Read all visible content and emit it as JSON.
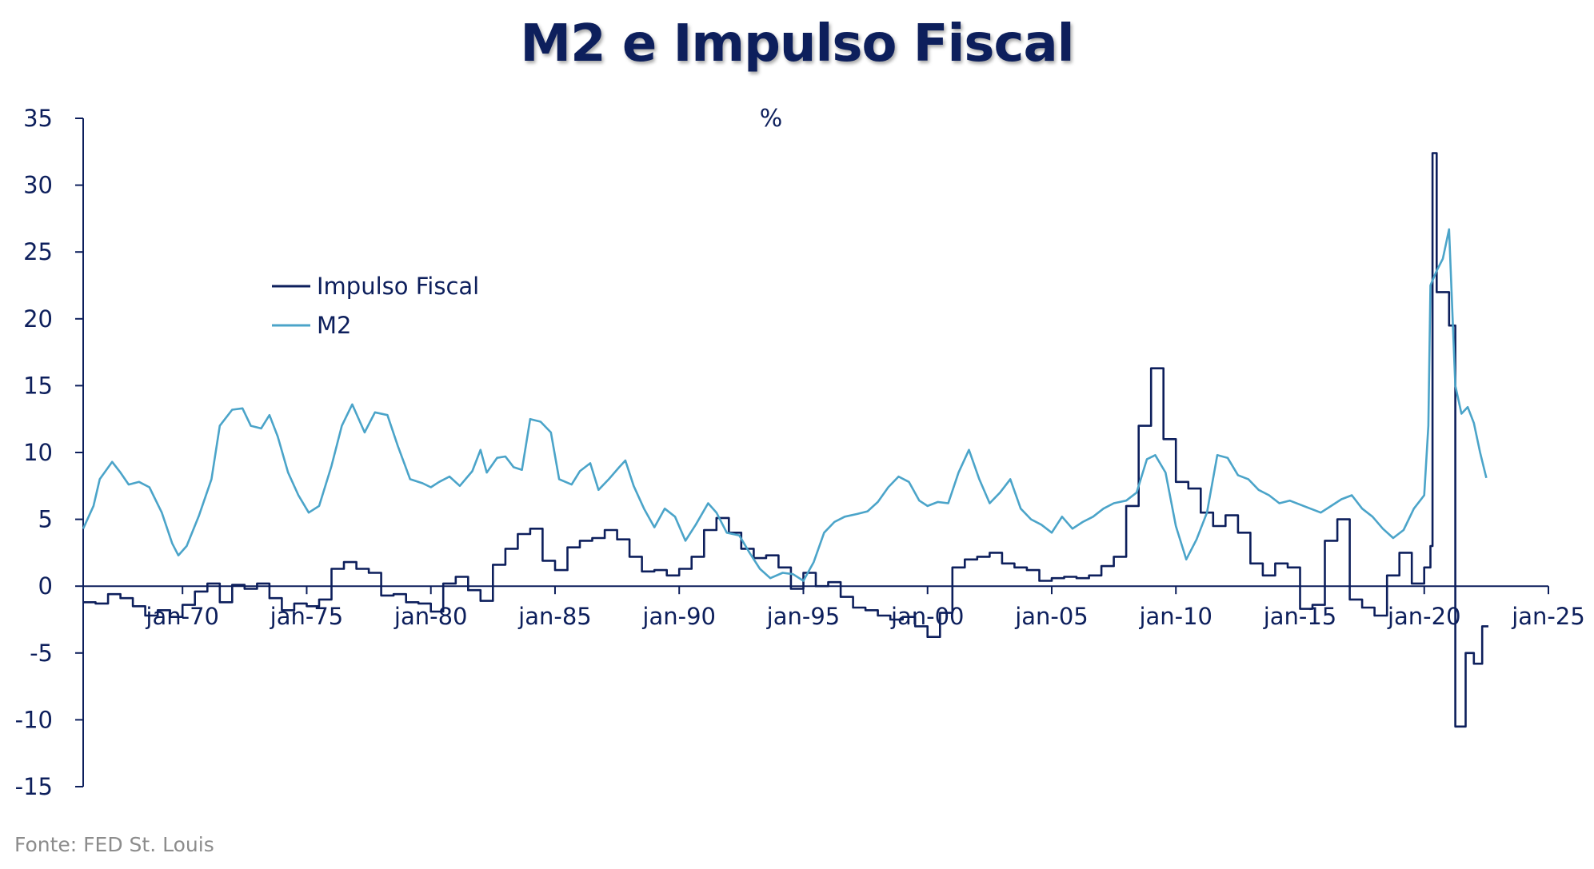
{
  "chart_data": {
    "type": "line",
    "title": "M2 e Impulso Fiscal",
    "subtitle": "%",
    "source": "Fonte:  FED St. Louis",
    "xlabel": "",
    "ylabel": "",
    "ylim": [
      -15,
      35
    ],
    "yticks": [
      35,
      30,
      25,
      20,
      15,
      10,
      5,
      0,
      -5,
      -10,
      -15
    ],
    "xlim": [
      "1966-01",
      "2025-01"
    ],
    "xticks": [
      {
        "date": "1970-01",
        "label": "jan-70"
      },
      {
        "date": "1975-01",
        "label": "jan-75"
      },
      {
        "date": "1980-01",
        "label": "jan-80"
      },
      {
        "date": "1985-01",
        "label": "jan-85"
      },
      {
        "date": "1990-01",
        "label": "jan-90"
      },
      {
        "date": "1995-01",
        "label": "jan-95"
      },
      {
        "date": "2000-01",
        "label": "jan-00"
      },
      {
        "date": "2005-01",
        "label": "jan-05"
      },
      {
        "date": "2010-01",
        "label": "jan-10"
      },
      {
        "date": "2015-01",
        "label": "jan-15"
      },
      {
        "date": "2020-01",
        "label": "jan-20"
      },
      {
        "date": "2025-01",
        "label": "jan-25"
      }
    ],
    "grid": false,
    "legend_position": "upper-left",
    "colors": {
      "title": "#0d1f5c",
      "axis": "#0d1f5c",
      "tick_label": "#0d1f5c",
      "source": "#8c8c8c"
    },
    "series": [
      {
        "name": "Impulso Fiscal",
        "color": "#0d1f5c",
        "stroke_width": 2.6,
        "step": true,
        "points": [
          [
            "1966-01",
            -1.2
          ],
          [
            "1966-07",
            -1.3
          ],
          [
            "1967-01",
            -0.6
          ],
          [
            "1967-07",
            -0.9
          ],
          [
            "1968-01",
            -1.5
          ],
          [
            "1968-07",
            -2.2
          ],
          [
            "1969-01",
            -1.8
          ],
          [
            "1969-07",
            -2.3
          ],
          [
            "1970-01",
            -1.4
          ],
          [
            "1970-07",
            -0.4
          ],
          [
            "1971-01",
            0.2
          ],
          [
            "1971-07",
            -1.2
          ],
          [
            "1972-01",
            0.1
          ],
          [
            "1972-07",
            -0.2
          ],
          [
            "1973-01",
            0.2
          ],
          [
            "1973-07",
            -0.9
          ],
          [
            "1974-01",
            -1.8
          ],
          [
            "1974-07",
            -1.3
          ],
          [
            "1975-01",
            -1.5
          ],
          [
            "1975-07",
            -1.0
          ],
          [
            "1976-01",
            1.3
          ],
          [
            "1976-07",
            1.8
          ],
          [
            "1977-01",
            1.3
          ],
          [
            "1977-07",
            1.0
          ],
          [
            "1978-01",
            -0.7
          ],
          [
            "1978-07",
            -0.6
          ],
          [
            "1979-01",
            -1.2
          ],
          [
            "1979-07",
            -1.3
          ],
          [
            "1980-01",
            -1.9
          ],
          [
            "1980-07",
            0.2
          ],
          [
            "1981-01",
            0.7
          ],
          [
            "1981-07",
            -0.3
          ],
          [
            "1982-01",
            -1.1
          ],
          [
            "1982-07",
            1.6
          ],
          [
            "1983-01",
            2.8
          ],
          [
            "1983-07",
            3.9
          ],
          [
            "1984-01",
            4.3
          ],
          [
            "1984-07",
            1.9
          ],
          [
            "1985-01",
            1.2
          ],
          [
            "1985-07",
            2.9
          ],
          [
            "1986-01",
            3.4
          ],
          [
            "1986-07",
            3.6
          ],
          [
            "1987-01",
            4.2
          ],
          [
            "1987-07",
            3.5
          ],
          [
            "1988-01",
            2.2
          ],
          [
            "1988-07",
            1.1
          ],
          [
            "1989-01",
            1.2
          ],
          [
            "1989-07",
            0.8
          ],
          [
            "1990-01",
            1.3
          ],
          [
            "1990-07",
            2.2
          ],
          [
            "1991-01",
            4.2
          ],
          [
            "1991-07",
            5.1
          ],
          [
            "1992-01",
            4.0
          ],
          [
            "1992-07",
            2.8
          ],
          [
            "1993-01",
            2.1
          ],
          [
            "1993-07",
            2.3
          ],
          [
            "1994-01",
            1.4
          ],
          [
            "1994-07",
            -0.2
          ],
          [
            "1995-01",
            1.0
          ],
          [
            "1995-07",
            0.0
          ],
          [
            "1996-01",
            0.3
          ],
          [
            "1996-07",
            -0.8
          ],
          [
            "1997-01",
            -1.6
          ],
          [
            "1997-07",
            -1.8
          ],
          [
            "1998-01",
            -2.2
          ],
          [
            "1998-07",
            -2.5
          ],
          [
            "1999-01",
            -2.3
          ],
          [
            "1999-07",
            -3.0
          ],
          [
            "2000-01",
            -3.8
          ],
          [
            "2000-07",
            -2.0
          ],
          [
            "2001-01",
            1.4
          ],
          [
            "2001-07",
            2.0
          ],
          [
            "2002-01",
            2.2
          ],
          [
            "2002-07",
            2.5
          ],
          [
            "2003-01",
            1.7
          ],
          [
            "2003-07",
            1.4
          ],
          [
            "2004-01",
            1.2
          ],
          [
            "2004-07",
            0.4
          ],
          [
            "2005-01",
            0.6
          ],
          [
            "2005-07",
            0.7
          ],
          [
            "2006-01",
            0.6
          ],
          [
            "2006-07",
            0.8
          ],
          [
            "2007-01",
            1.5
          ],
          [
            "2007-07",
            2.2
          ],
          [
            "2008-01",
            6.0
          ],
          [
            "2008-07",
            12.0
          ],
          [
            "2009-01",
            16.3
          ],
          [
            "2009-07",
            11.0
          ],
          [
            "2010-01",
            7.8
          ],
          [
            "2010-07",
            7.3
          ],
          [
            "2011-01",
            5.5
          ],
          [
            "2011-07",
            4.5
          ],
          [
            "2012-01",
            5.3
          ],
          [
            "2012-07",
            4.0
          ],
          [
            "2013-01",
            1.7
          ],
          [
            "2013-07",
            0.8
          ],
          [
            "2014-01",
            1.7
          ],
          [
            "2014-07",
            1.4
          ],
          [
            "2015-01",
            -1.7
          ],
          [
            "2015-07",
            -1.4
          ],
          [
            "2016-01",
            3.4
          ],
          [
            "2016-07",
            5.0
          ],
          [
            "2017-01",
            -1.0
          ],
          [
            "2017-07",
            -1.6
          ],
          [
            "2018-01",
            -2.2
          ],
          [
            "2018-07",
            0.8
          ],
          [
            "2019-01",
            2.5
          ],
          [
            "2019-07",
            0.2
          ],
          [
            "2020-01",
            1.4
          ],
          [
            "2020-04",
            3.0
          ],
          [
            "2020-05",
            32.4
          ],
          [
            "2020-07",
            22.0
          ],
          [
            "2021-01",
            19.5
          ],
          [
            "2021-04",
            -10.5
          ],
          [
            "2021-09",
            -5.0
          ],
          [
            "2022-01",
            -5.8
          ],
          [
            "2022-05",
            -3.0
          ],
          [
            "2022-08",
            -3.0
          ]
        ]
      },
      {
        "name": "M2",
        "color": "#4ba4c9",
        "stroke_width": 2.6,
        "step": false,
        "points": [
          [
            "1966-01",
            4.3
          ],
          [
            "1966-06",
            6.0
          ],
          [
            "1966-09",
            8.0
          ],
          [
            "1967-03",
            9.3
          ],
          [
            "1967-07",
            8.5
          ],
          [
            "1967-11",
            7.6
          ],
          [
            "1968-04",
            7.8
          ],
          [
            "1968-09",
            7.4
          ],
          [
            "1969-03",
            5.5
          ],
          [
            "1969-08",
            3.2
          ],
          [
            "1969-11",
            2.3
          ],
          [
            "1970-03",
            3.0
          ],
          [
            "1970-09",
            5.3
          ],
          [
            "1971-03",
            8.0
          ],
          [
            "1971-07",
            12.0
          ],
          [
            "1972-01",
            13.2
          ],
          [
            "1972-06",
            13.3
          ],
          [
            "1972-10",
            12.0
          ],
          [
            "1973-03",
            11.8
          ],
          [
            "1973-07",
            12.8
          ],
          [
            "1973-11",
            11.2
          ],
          [
            "1974-04",
            8.5
          ],
          [
            "1974-09",
            6.8
          ],
          [
            "1975-02",
            5.5
          ],
          [
            "1975-07",
            6.0
          ],
          [
            "1976-01",
            9.0
          ],
          [
            "1976-06",
            12.0
          ],
          [
            "1976-11",
            13.6
          ],
          [
            "1977-05",
            11.5
          ],
          [
            "1977-10",
            13.0
          ],
          [
            "1978-04",
            12.8
          ],
          [
            "1978-09",
            10.5
          ],
          [
            "1979-03",
            8.0
          ],
          [
            "1979-09",
            7.7
          ],
          [
            "1980-01",
            7.4
          ],
          [
            "1980-05",
            7.8
          ],
          [
            "1980-10",
            8.2
          ],
          [
            "1981-03",
            7.5
          ],
          [
            "1981-09",
            8.6
          ],
          [
            "1982-01",
            10.2
          ],
          [
            "1982-04",
            8.5
          ],
          [
            "1982-09",
            9.6
          ],
          [
            "1983-01",
            9.7
          ],
          [
            "1983-05",
            8.9
          ],
          [
            "1983-09",
            8.7
          ],
          [
            "1984-01",
            12.5
          ],
          [
            "1984-06",
            12.3
          ],
          [
            "1984-11",
            11.5
          ],
          [
            "1985-03",
            8.0
          ],
          [
            "1985-09",
            7.6
          ],
          [
            "1986-01",
            8.6
          ],
          [
            "1986-06",
            9.2
          ],
          [
            "1986-10",
            7.2
          ],
          [
            "1987-03",
            8.0
          ],
          [
            "1987-08",
            8.9
          ],
          [
            "1987-11",
            9.4
          ],
          [
            "1988-03",
            7.5
          ],
          [
            "1988-08",
            5.8
          ],
          [
            "1989-01",
            4.4
          ],
          [
            "1989-06",
            5.8
          ],
          [
            "1989-11",
            5.2
          ],
          [
            "1990-04",
            3.4
          ],
          [
            "1990-09",
            4.6
          ],
          [
            "1991-03",
            6.2
          ],
          [
            "1991-07",
            5.5
          ],
          [
            "1991-12",
            4.0
          ],
          [
            "1992-06",
            3.8
          ],
          [
            "1992-11",
            2.5
          ],
          [
            "1993-04",
            1.3
          ],
          [
            "1993-09",
            0.6
          ],
          [
            "1994-03",
            1.0
          ],
          [
            "1994-08",
            0.9
          ],
          [
            "1995-01",
            0.4
          ],
          [
            "1995-06",
            1.8
          ],
          [
            "1995-11",
            4.0
          ],
          [
            "1996-04",
            4.8
          ],
          [
            "1996-09",
            5.2
          ],
          [
            "1997-03",
            5.4
          ],
          [
            "1997-08",
            5.6
          ],
          [
            "1998-01",
            6.3
          ],
          [
            "1998-06",
            7.4
          ],
          [
            "1998-11",
            8.2
          ],
          [
            "1999-04",
            7.8
          ],
          [
            "1999-09",
            6.4
          ],
          [
            "2000-01",
            6.0
          ],
          [
            "2000-06",
            6.3
          ],
          [
            "2000-11",
            6.2
          ],
          [
            "2001-04",
            8.5
          ],
          [
            "2001-09",
            10.2
          ],
          [
            "2002-02",
            8.0
          ],
          [
            "2002-07",
            6.2
          ],
          [
            "2002-12",
            7.0
          ],
          [
            "2003-05",
            8.0
          ],
          [
            "2003-10",
            5.8
          ],
          [
            "2004-03",
            5.0
          ],
          [
            "2004-08",
            4.6
          ],
          [
            "2005-01",
            4.0
          ],
          [
            "2005-06",
            5.2
          ],
          [
            "2005-11",
            4.3
          ],
          [
            "2006-04",
            4.8
          ],
          [
            "2006-09",
            5.2
          ],
          [
            "2007-02",
            5.8
          ],
          [
            "2007-07",
            6.2
          ],
          [
            "2008-01",
            6.4
          ],
          [
            "2008-06",
            7.0
          ],
          [
            "2008-11",
            9.5
          ],
          [
            "2009-03",
            9.8
          ],
          [
            "2009-08",
            8.5
          ],
          [
            "2010-01",
            4.5
          ],
          [
            "2010-06",
            2.0
          ],
          [
            "2010-11",
            3.5
          ],
          [
            "2011-04",
            5.5
          ],
          [
            "2011-09",
            9.8
          ],
          [
            "2012-02",
            9.6
          ],
          [
            "2012-07",
            8.3
          ],
          [
            "2012-12",
            8.0
          ],
          [
            "2013-05",
            7.2
          ],
          [
            "2013-10",
            6.8
          ],
          [
            "2014-03",
            6.2
          ],
          [
            "2014-08",
            6.4
          ],
          [
            "2015-01",
            6.1
          ],
          [
            "2015-06",
            5.8
          ],
          [
            "2015-11",
            5.5
          ],
          [
            "2016-04",
            6.0
          ],
          [
            "2016-09",
            6.5
          ],
          [
            "2017-02",
            6.8
          ],
          [
            "2017-07",
            5.8
          ],
          [
            "2017-12",
            5.2
          ],
          [
            "2018-05",
            4.3
          ],
          [
            "2018-10",
            3.6
          ],
          [
            "2019-03",
            4.2
          ],
          [
            "2019-08",
            5.8
          ],
          [
            "2020-01",
            6.8
          ],
          [
            "2020-03",
            12.0
          ],
          [
            "2020-04",
            22.5
          ],
          [
            "2020-07",
            23.6
          ],
          [
            "2020-10",
            24.5
          ],
          [
            "2021-01",
            26.7
          ],
          [
            "2021-04",
            15.0
          ],
          [
            "2021-07",
            12.9
          ],
          [
            "2021-10",
            13.4
          ],
          [
            "2022-01",
            12.2
          ],
          [
            "2022-04",
            10.0
          ],
          [
            "2022-07",
            8.1
          ]
        ]
      }
    ]
  }
}
